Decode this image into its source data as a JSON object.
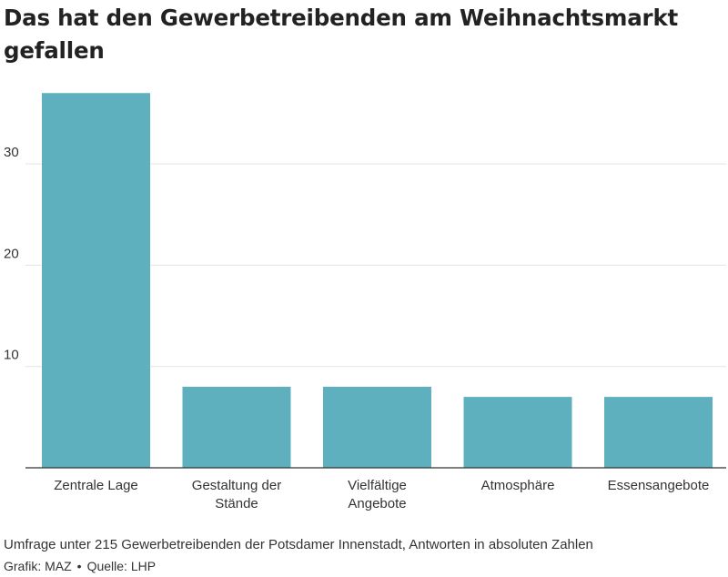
{
  "title": "Das hat den Gewerbetreibenden am Weihnachtsmarkt gefallen",
  "chart_data": {
    "type": "bar",
    "categories": [
      "Zentrale Lage",
      "Gestaltung der Stände",
      "Vielfältige Angebote",
      "Atmosphäre",
      "Essensangebote"
    ],
    "category_lines": [
      [
        "Zentrale Lage"
      ],
      [
        "Gestaltung der",
        "Stände"
      ],
      [
        "Vielfältige",
        "Angebote"
      ],
      [
        "Atmosphäre"
      ],
      [
        "Essensangebote"
      ]
    ],
    "values": [
      37,
      8,
      8,
      7,
      7
    ],
    "ylim": [
      0,
      39
    ],
    "yticks": [
      10,
      20,
      30
    ],
    "bar_color": "#5fb0be",
    "grid": true
  },
  "footer": {
    "note": "Umfrage unter 215 Gewerbetreibenden der Potsdamer Innenstadt, Antworten in absoluten Zahlen",
    "grafik": "Grafik: MAZ",
    "quelle": "Quelle: LHP"
  }
}
